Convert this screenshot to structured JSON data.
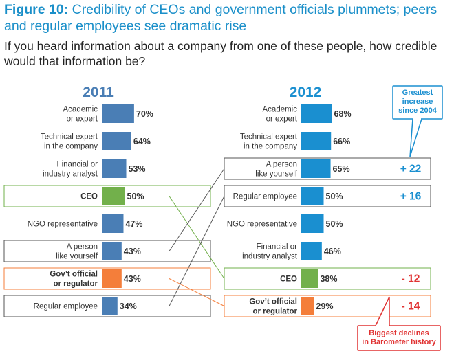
{
  "figure": {
    "label": "Figure 10:",
    "title": "Credibility of CEOs and government officials plummets; peers and regular employees see dramatic rise",
    "question": "If you heard information about a company from one of these people, how credible would that information be?"
  },
  "chart_data": {
    "type": "bar",
    "orientation": "horizontal",
    "unit": "%",
    "colors": {
      "bar_2011": "#4a7eb5",
      "bar_2012": "#1a8fd0",
      "ceo": "#72b04b",
      "gov": "#f47e3a",
      "year_2011": "#4a7eb5",
      "year_2012": "#1a8fd0",
      "increase": "#1a8fd0",
      "decline": "#e03232"
    },
    "panels": [
      {
        "year": "2011",
        "rows": [
          {
            "id": "academic",
            "label": [
              "Academic",
              "or expert"
            ],
            "value": 70
          },
          {
            "id": "technical",
            "label": [
              "Technical expert",
              "in the company"
            ],
            "value": 64
          },
          {
            "id": "financial",
            "label": [
              "Financial or",
              "industry analyst"
            ],
            "value": 53
          },
          {
            "id": "ceo",
            "label": [
              "CEO"
            ],
            "value": 50
          },
          {
            "id": "ngo",
            "label": [
              "NGO representative"
            ],
            "value": 47
          },
          {
            "id": "person",
            "label": [
              "A person",
              "like yourself"
            ],
            "value": 43
          },
          {
            "id": "gov",
            "label": [
              "Gov’t official",
              "or regulator"
            ],
            "value": 43
          },
          {
            "id": "employee",
            "label": [
              "Regular employee"
            ],
            "value": 34
          }
        ]
      },
      {
        "year": "2012",
        "rows": [
          {
            "id": "academic",
            "label": [
              "Academic",
              "or expert"
            ],
            "value": 68
          },
          {
            "id": "technical",
            "label": [
              "Technical expert",
              "in the company"
            ],
            "value": 66
          },
          {
            "id": "person",
            "label": [
              "A person",
              "like yourself"
            ],
            "value": 65,
            "change": "+ 22"
          },
          {
            "id": "employee",
            "label": [
              "Regular employee"
            ],
            "value": 50,
            "change": "+ 16"
          },
          {
            "id": "ngo",
            "label": [
              "NGO representative"
            ],
            "value": 50
          },
          {
            "id": "financial",
            "label": [
              "Financial or",
              "industry analyst"
            ],
            "value": 46
          },
          {
            "id": "ceo",
            "label": [
              "CEO"
            ],
            "value": 38,
            "change": "- 12"
          },
          {
            "id": "gov",
            "label": [
              "Gov’t official",
              "or regulator"
            ],
            "value": 29,
            "change": "- 14"
          }
        ]
      }
    ],
    "callouts": {
      "increase": [
        "Greatest",
        "increase",
        "since 2004"
      ],
      "decline": [
        "Biggest declines",
        "in Barometer history"
      ]
    }
  }
}
